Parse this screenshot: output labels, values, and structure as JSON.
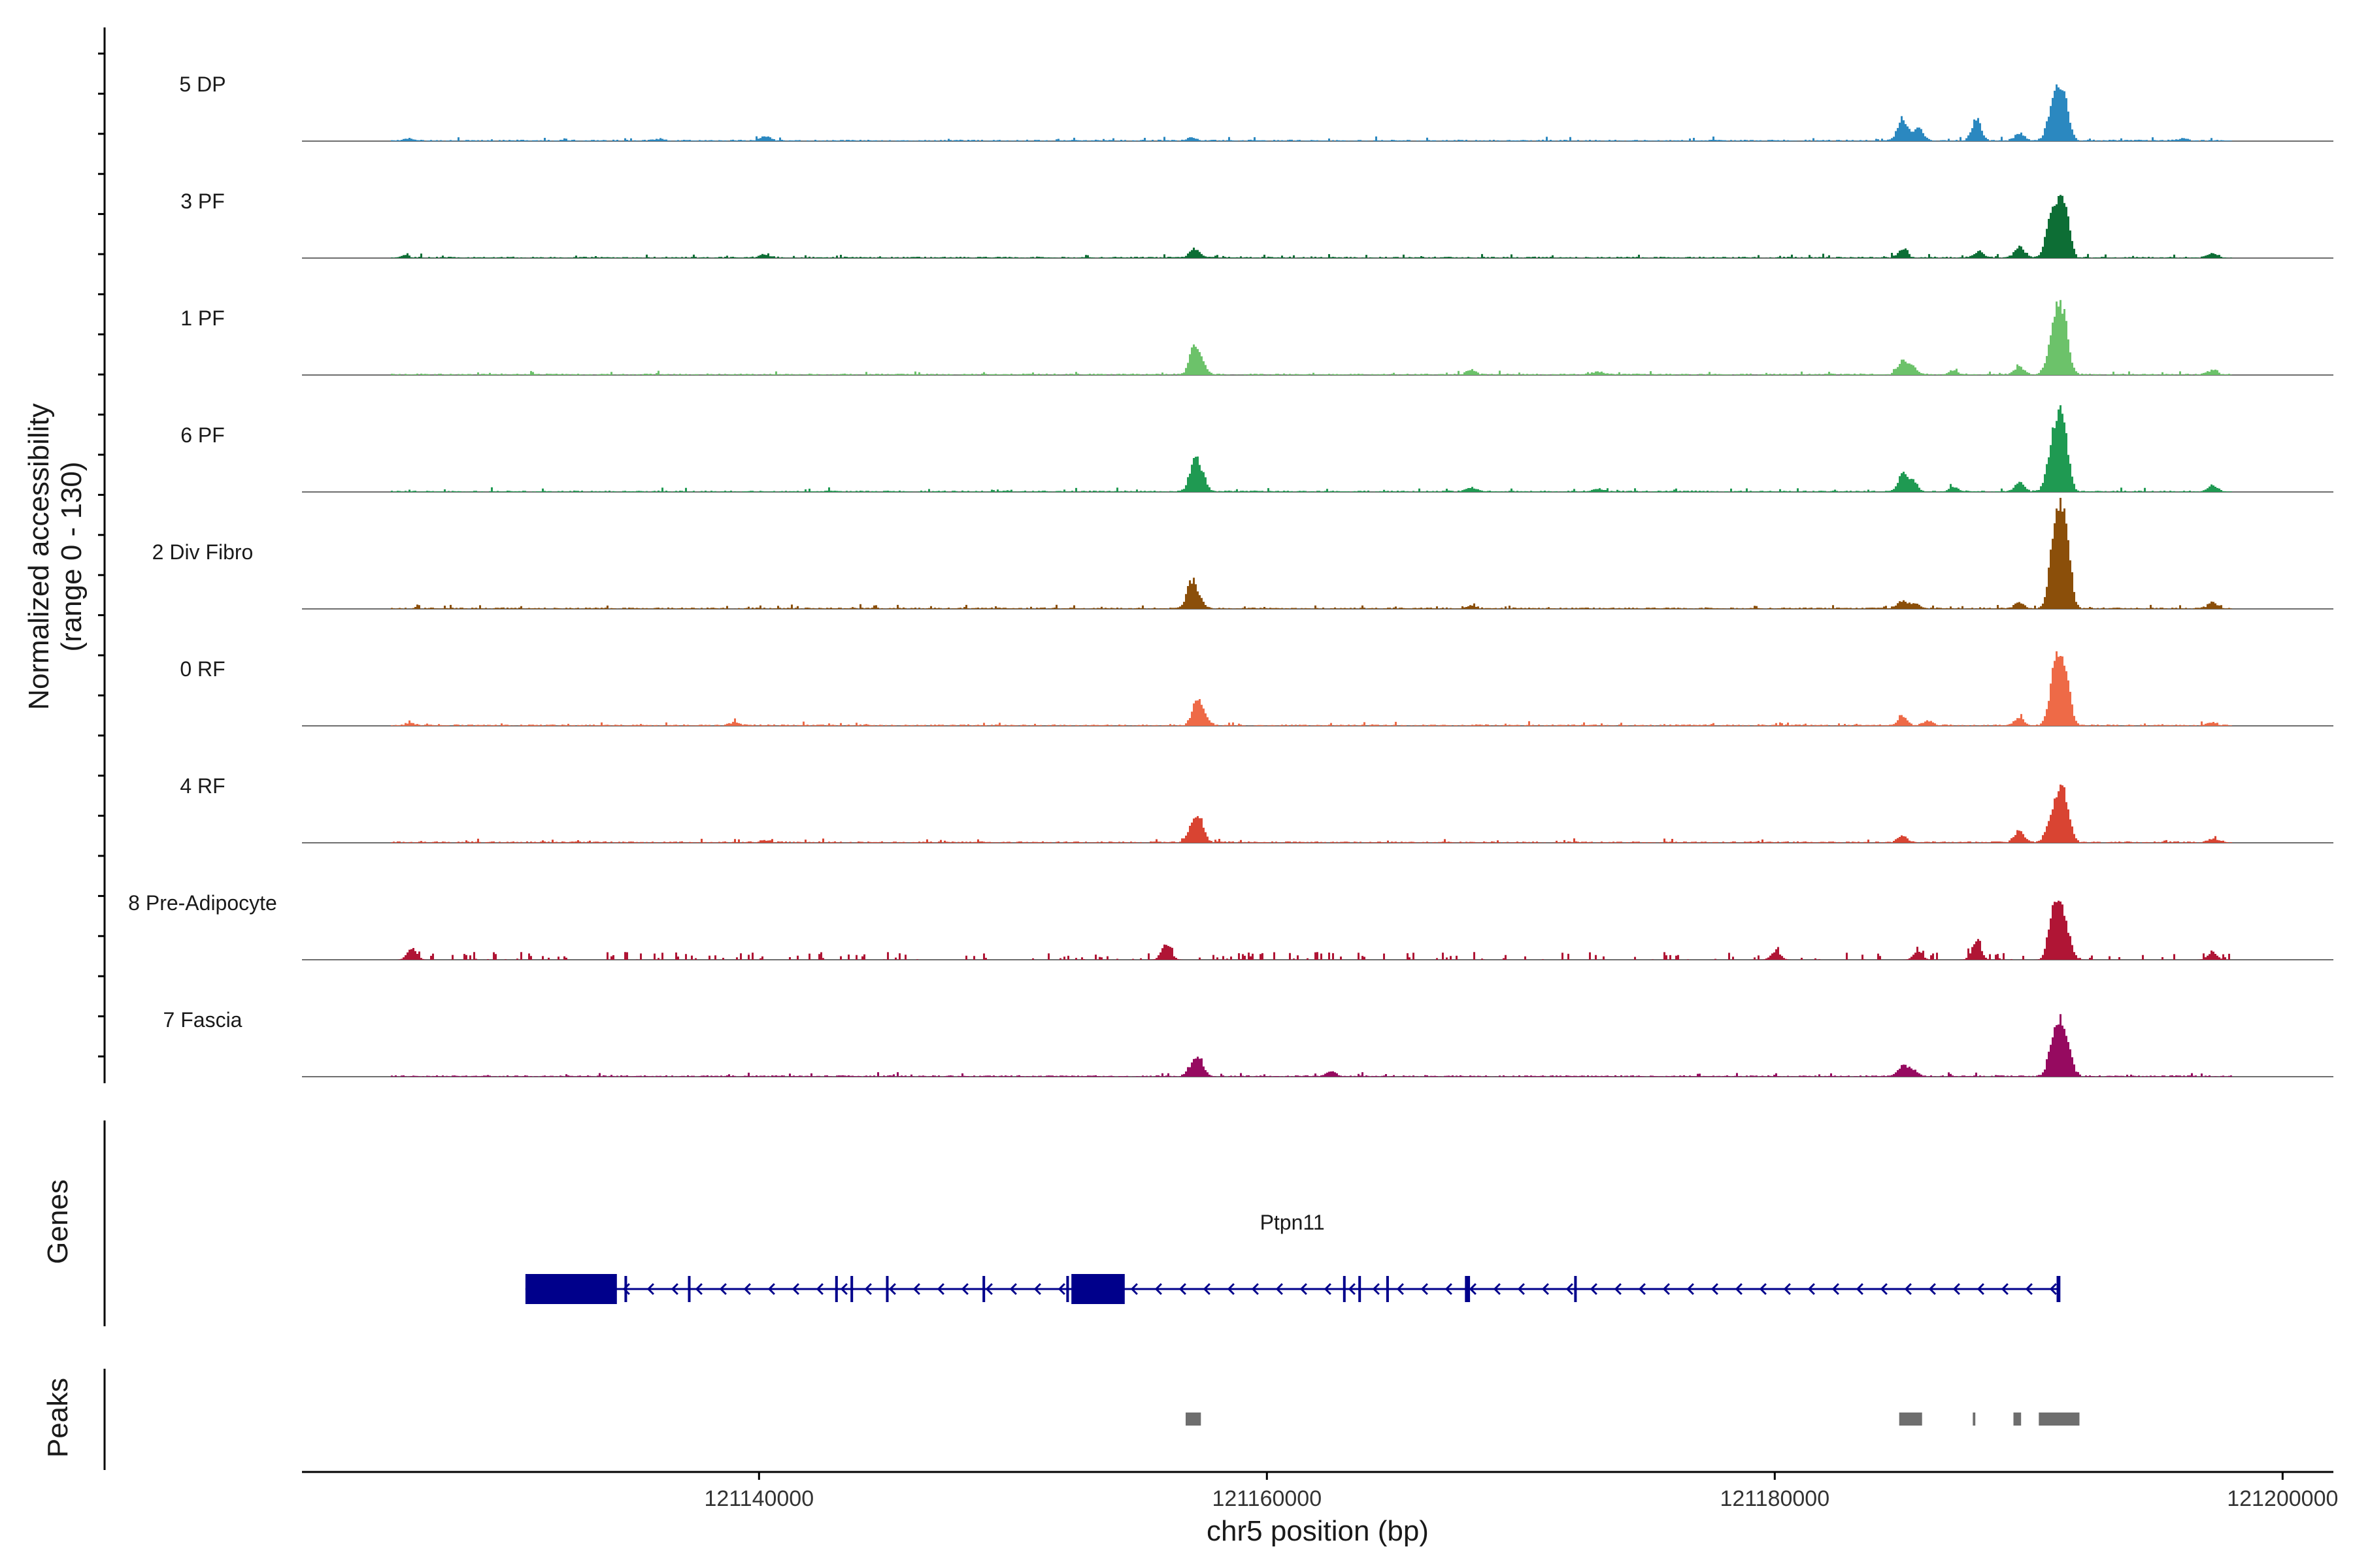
{
  "chart_data": {
    "type": "coverage-track",
    "y_axis_title_line1": "Normalized accessibility",
    "y_axis_title_line2": "(range 0 - 130)",
    "y_range": [
      0,
      130
    ],
    "x_label": "chr5 position (bp)",
    "x_range": [
      121122000,
      121202000
    ],
    "x_ticks": [
      121140000,
      121160000,
      121180000,
      121200000
    ],
    "x_tick_labels": [
      "121140000",
      "121160000",
      "121180000",
      "121200000"
    ],
    "data_x_range": [
      121125500,
      121198000
    ],
    "tracks": [
      {
        "name": "5 DP",
        "color": "#2b88c0",
        "sparse": false,
        "peaks": [
          [
            121126200,
            3
          ],
          [
            121140200,
            5
          ],
          [
            121136000,
            2
          ],
          [
            121157000,
            4
          ],
          [
            121185000,
            30
          ],
          [
            121185600,
            18
          ],
          [
            121187900,
            28
          ],
          [
            121189600,
            10
          ],
          [
            121190800,
            25
          ],
          [
            121191100,
            55
          ],
          [
            121191400,
            45
          ],
          [
            121196000,
            3
          ]
        ]
      },
      {
        "name": "3 PF",
        "color": "#0d6e35",
        "sparse": false,
        "peaks": [
          [
            121126000,
            3
          ],
          [
            121140200,
            4
          ],
          [
            121157100,
            12
          ],
          [
            121185000,
            10
          ],
          [
            121188000,
            8
          ],
          [
            121189600,
            14
          ],
          [
            121190800,
            45
          ],
          [
            121191100,
            48
          ],
          [
            121191400,
            60
          ],
          [
            121197200,
            5
          ]
        ]
      },
      {
        "name": "1 PF",
        "color": "#6cc26a",
        "sparse": false,
        "peaks": [
          [
            121157100,
            35
          ],
          [
            121157400,
            15
          ],
          [
            121168000,
            6
          ],
          [
            121173000,
            4
          ],
          [
            121185000,
            18
          ],
          [
            121185400,
            10
          ],
          [
            121187000,
            5
          ],
          [
            121189600,
            10
          ],
          [
            121190800,
            28
          ],
          [
            121191100,
            70
          ],
          [
            121191400,
            55
          ],
          [
            121197200,
            6
          ]
        ]
      },
      {
        "name": "6 PF",
        "color": "#1f9a52",
        "sparse": false,
        "peaks": [
          [
            121157100,
            40
          ],
          [
            121157400,
            18
          ],
          [
            121168000,
            5
          ],
          [
            121173000,
            4
          ],
          [
            121185000,
            22
          ],
          [
            121185400,
            14
          ],
          [
            121187000,
            6
          ],
          [
            121189600,
            12
          ],
          [
            121190800,
            38
          ],
          [
            121191100,
            80
          ],
          [
            121191400,
            60
          ],
          [
            121197200,
            8
          ]
        ]
      },
      {
        "name": "2 Div Fibro",
        "color": "#8b4f0a",
        "sparse": false,
        "peaks": [
          [
            121157000,
            35
          ],
          [
            121157300,
            10
          ],
          [
            121168000,
            4
          ],
          [
            121185000,
            10
          ],
          [
            121185500,
            6
          ],
          [
            121189600,
            8
          ],
          [
            121190900,
            60
          ],
          [
            121191150,
            92
          ],
          [
            121191450,
            82
          ],
          [
            121197200,
            8
          ]
        ]
      },
      {
        "name": "0 RF",
        "color": "#ee6a47",
        "sparse": false,
        "peaks": [
          [
            121126200,
            3
          ],
          [
            121139000,
            4
          ],
          [
            121157200,
            32
          ],
          [
            121157500,
            12
          ],
          [
            121185000,
            12
          ],
          [
            121186000,
            6
          ],
          [
            121189600,
            10
          ],
          [
            121190900,
            40
          ],
          [
            121191150,
            70
          ],
          [
            121191450,
            52
          ],
          [
            121197200,
            4
          ]
        ]
      },
      {
        "name": "4 RF",
        "color": "#d94432",
        "sparse": false,
        "peaks": [
          [
            121140200,
            3
          ],
          [
            121157000,
            18
          ],
          [
            121157300,
            30
          ],
          [
            121185000,
            8
          ],
          [
            121189600,
            14
          ],
          [
            121190800,
            25
          ],
          [
            121191150,
            60
          ],
          [
            121191450,
            40
          ],
          [
            121197200,
            5
          ]
        ]
      },
      {
        "name": "8 Pre-Adipocyte",
        "color": "#b01535",
        "sparse": true,
        "peaks": [
          [
            121126300,
            16
          ],
          [
            121156000,
            22
          ],
          [
            121187900,
            22
          ],
          [
            121190900,
            55
          ],
          [
            121191200,
            55
          ],
          [
            121191500,
            28
          ],
          [
            121197200,
            10
          ],
          [
            121180000,
            12
          ],
          [
            121185600,
            10
          ]
        ]
      },
      {
        "name": "7 Fascia",
        "color": "#960a60",
        "sparse": false,
        "peaks": [
          [
            121157000,
            12
          ],
          [
            121157300,
            22
          ],
          [
            121162500,
            6
          ],
          [
            121185000,
            14
          ],
          [
            121185400,
            8
          ],
          [
            121190900,
            40
          ],
          [
            121191200,
            55
          ],
          [
            121191500,
            35
          ]
        ]
      }
    ],
    "genes_title": "Genes",
    "gene": {
      "name": "Ptpn11",
      "color": "#00008b",
      "start": 121130800,
      "end": 121191200,
      "strand": "-",
      "exons": [
        [
          121130800,
          121134400
        ],
        [
          121152300,
          121154400
        ],
        [
          121134700,
          121134800
        ],
        [
          121137200,
          121137300
        ],
        [
          121143000,
          121143100
        ],
        [
          121143600,
          121143700
        ],
        [
          121145000,
          121145100
        ],
        [
          121148800,
          121148900
        ],
        [
          121152100,
          121152200
        ],
        [
          121163000,
          121163100
        ],
        [
          121163600,
          121163700
        ],
        [
          121164700,
          121164800
        ],
        [
          121167800,
          121168000
        ],
        [
          121172100,
          121172200
        ],
        [
          121191100,
          121191250
        ]
      ]
    },
    "peaks_title": "Peaks",
    "peaks_color": "#6e6e6e",
    "peak_regions": [
      [
        121156800,
        121157400
      ],
      [
        121184900,
        121185800
      ],
      [
        121187800,
        121187900
      ],
      [
        121189400,
        121189700
      ],
      [
        121190400,
        121192000
      ]
    ]
  }
}
